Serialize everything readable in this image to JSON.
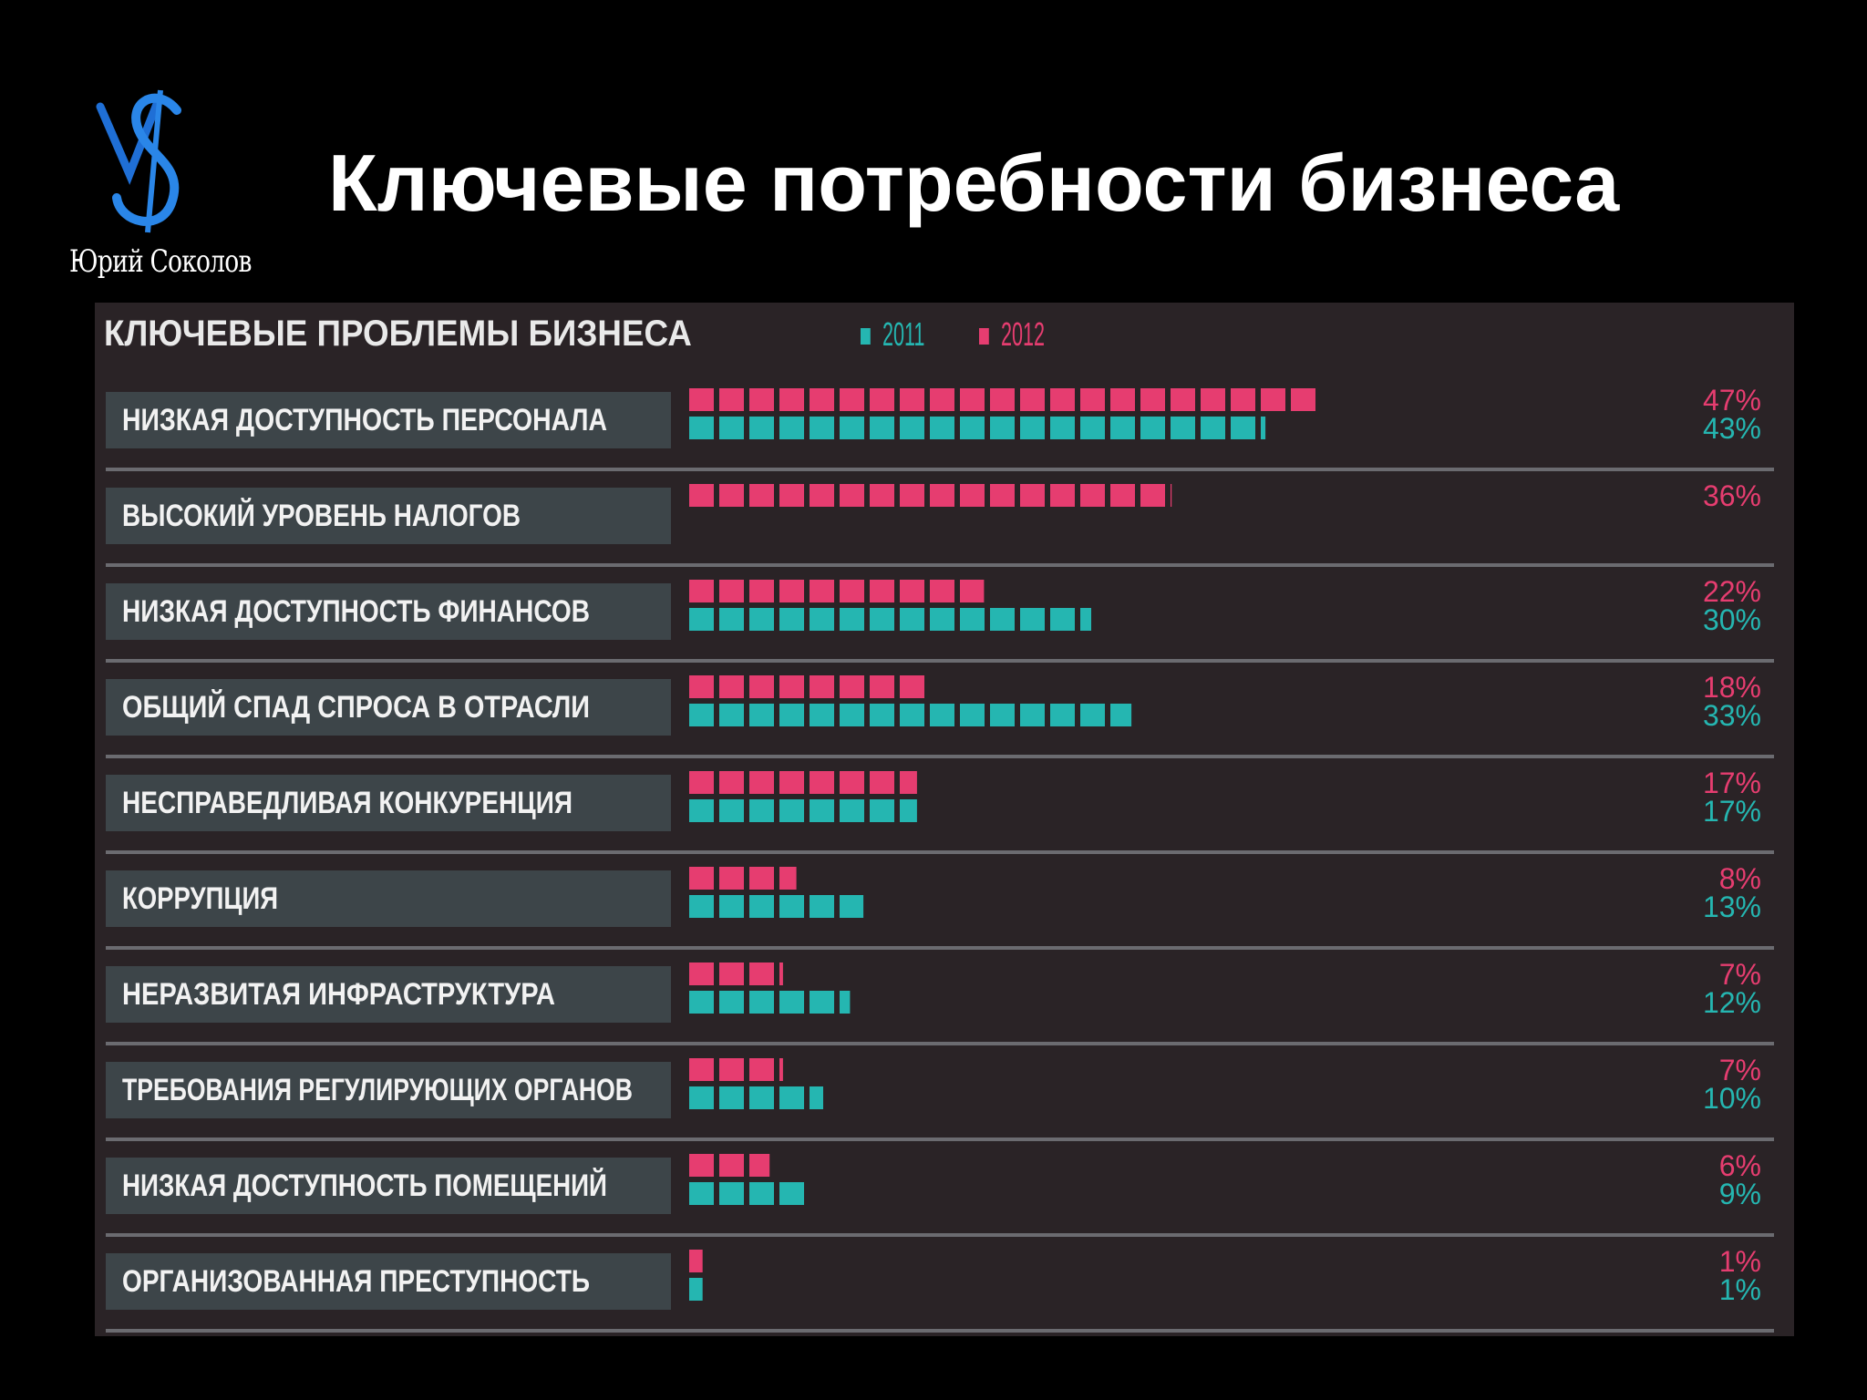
{
  "slide": {
    "title": "Ключевые потребности бизнеса",
    "logo": {
      "caption": "Юрий Соколов",
      "monogram": "YS"
    }
  },
  "colors": {
    "background": "#000000",
    "panel": "#2a2326",
    "label_box": "#3d4549",
    "series_2011": "#25b6b1",
    "series_2012": "#e63d70",
    "divider": "#6b6b70",
    "title": "#ffffff"
  },
  "chart_data": {
    "type": "bar",
    "title": "КЛЮЧЕВЫЕ ПРОБЛЕМЫ БИЗНЕСА",
    "legend": {
      "position": "top",
      "entries": [
        "2011",
        "2012"
      ]
    },
    "unit": "%",
    "categories": [
      "НИЗКАЯ ДОСТУПНОСТЬ ПЕРСОНАЛА",
      "ВЫСОКИЙ УРОВЕНЬ НАЛОГОВ",
      "НИЗКАЯ ДОСТУПНОСТЬ ФИНАНСОВ",
      "ОБЩИЙ СПАД СПРОСА В ОТРАСЛИ",
      "НЕСПРАВЕДЛИВАЯ КОНКУРЕНЦИЯ",
      "КОРРУПЦИЯ",
      "НЕРАЗВИТАЯ ИНФРАСТРУКТУРА",
      "ТРЕБОВАНИЯ РЕГУЛИРУЮЩИХ ОРГАНОВ",
      "НИЗКАЯ ДОСТУПНОСТЬ ПОМЕЩЕНИЙ",
      "ОРГАНИЗОВАННАЯ ПРЕСТУПНОСТЬ"
    ],
    "series": [
      {
        "name": "2012",
        "values": [
          47,
          36,
          22,
          18,
          17,
          8,
          7,
          7,
          6,
          1
        ],
        "labels": [
          "47%",
          "36%",
          "22%",
          "18%",
          "17%",
          "8%",
          "7%",
          "7%",
          "6%",
          "1%"
        ]
      },
      {
        "name": "2011",
        "values": [
          43,
          null,
          30,
          33,
          17,
          13,
          12,
          10,
          9,
          1
        ],
        "labels": [
          "43%",
          "",
          "30%",
          "33%",
          "17%",
          "13%",
          "12%",
          "10%",
          "9%",
          "1%"
        ]
      }
    ]
  }
}
